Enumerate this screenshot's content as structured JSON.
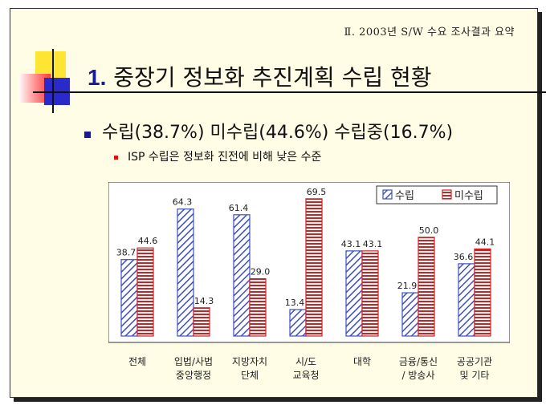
{
  "slide": {
    "header": "Ⅱ. 2003년 S/W 수요 조사결과 요약",
    "title_number": "1.",
    "title_text": "중장기 정보화 추진계획 수립 현황",
    "subtitle": "수립(38.7%) 미수립(44.6%) 수립중(16.7%)",
    "point": "ISP 수립은 정보화 진전에 비해 낮은 수준"
  },
  "colors": {
    "series1": "#3d4fbf",
    "series2": "#cc2222",
    "title_accent": "#1a1a99"
  },
  "chart_data": {
    "type": "bar",
    "categories": [
      [
        "전체"
      ],
      [
        "입법/사법",
        "중앙행정"
      ],
      [
        "지방자치",
        "단체"
      ],
      [
        "시/도",
        "교육청"
      ],
      [
        "대학"
      ],
      [
        "금융/통신",
        "/ 방송사"
      ],
      [
        "공공기관",
        "및 기타"
      ]
    ],
    "series": [
      {
        "name": "수립",
        "values": [
          38.7,
          64.3,
          61.4,
          13.4,
          43.1,
          21.9,
          36.6
        ],
        "labels": [
          "38.7",
          "64.3",
          "61.4",
          "13.4",
          "43.1",
          "21.9",
          "36.6"
        ],
        "pattern": "hatch"
      },
      {
        "name": "미수립",
        "values": [
          44.6,
          14.3,
          29.0,
          69.5,
          43.1,
          50.0,
          44.1
        ],
        "labels": [
          "44.6",
          "14.3",
          "29.0",
          "69.5",
          "43.1",
          "50.0",
          "44.1"
        ],
        "pattern": "stripes"
      }
    ],
    "ylim": [
      0,
      80
    ],
    "legend": "top-right",
    "grid": false
  }
}
